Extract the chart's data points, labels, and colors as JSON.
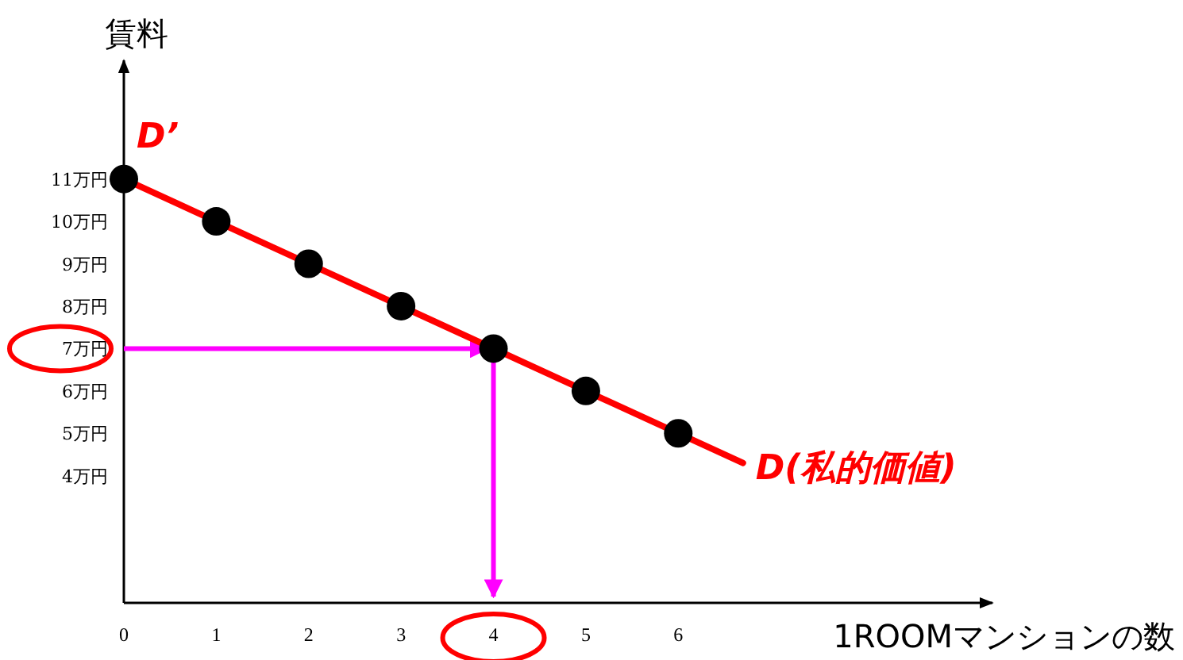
{
  "chart_data": {
    "type": "scatter",
    "ylabel": "賃料",
    "xlabel": "1ROOMマンションの数",
    "xlim": [
      0,
      9.4
    ],
    "ylim": [
      1,
      13.8
    ],
    "xticks": [
      0,
      1,
      2,
      3,
      4,
      5,
      6
    ],
    "yticks": [
      {
        "value": 4,
        "label": "4万円"
      },
      {
        "value": 5,
        "label": "5万円"
      },
      {
        "value": 6,
        "label": "6万円"
      },
      {
        "value": 7,
        "label": "7万円"
      },
      {
        "value": 8,
        "label": "8万円"
      },
      {
        "value": 9,
        "label": "9万円"
      },
      {
        "value": 10,
        "label": "10万円"
      },
      {
        "value": 11,
        "label": "11万円"
      }
    ],
    "grid": false,
    "series": [
      {
        "type": "line",
        "color": "#ff0000",
        "x": [
          0,
          6.7
        ],
        "values": [
          11,
          4.3
        ]
      },
      {
        "marker": "circle",
        "color": "#000000",
        "x": [
          0,
          1,
          2,
          3,
          4,
          5,
          6
        ],
        "values": [
          11,
          10,
          9,
          8,
          7,
          6,
          5
        ]
      }
    ],
    "ref_lines": [
      {
        "axis": "y",
        "value": 7,
        "color": "#ff00ff"
      },
      {
        "axis": "x",
        "value": 4,
        "color": "#ff00ff"
      }
    ],
    "annotations": [
      "D’",
      "D(私的価値)"
    ]
  }
}
